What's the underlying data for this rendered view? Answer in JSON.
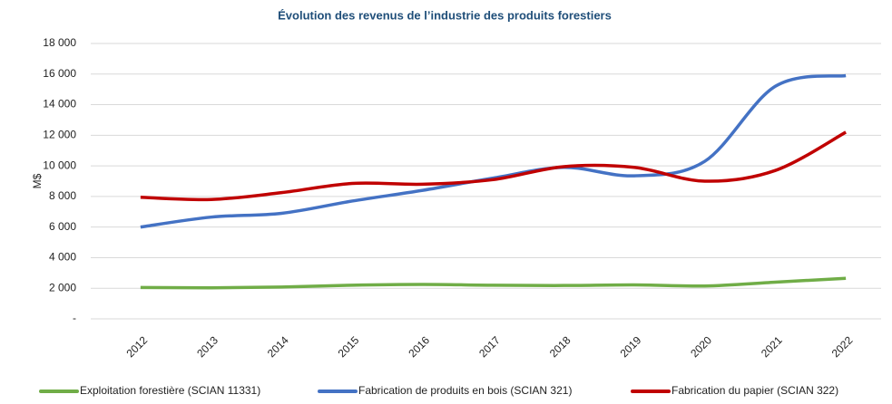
{
  "chart_data": {
    "type": "line",
    "title": "Évolution des revenus de l’industrie des produits forestiers",
    "y_label": "M$",
    "categories": [
      "2012",
      "2013",
      "2014",
      "2015",
      "2016",
      "2017",
      "2018",
      "2019",
      "2020",
      "2021",
      "2022"
    ],
    "series": [
      {
        "name": "Exploitation forestière (SCIAN 11331)",
        "color": "#70ad47",
        "values": [
          2050,
          2030,
          2080,
          2200,
          2250,
          2200,
          2180,
          2220,
          2150,
          2400,
          2650
        ]
      },
      {
        "name": "Fabrication de produits en bois (SCIAN 321)",
        "color": "#4472c4",
        "values": [
          6000,
          6650,
          6900,
          7700,
          8400,
          9200,
          9900,
          9350,
          10300,
          15200,
          15900
        ]
      },
      {
        "name": "Fabrication du papier (SCIAN 322)",
        "color": "#c00000",
        "values": [
          7950,
          7800,
          8250,
          8850,
          8800,
          9100,
          9950,
          9900,
          9000,
          9700,
          12200
        ]
      }
    ],
    "ylim": [
      0,
      18000
    ],
    "yticks": [
      {
        "value": 0,
        "label": "-"
      },
      {
        "value": 2000,
        "label": "2 000"
      },
      {
        "value": 4000,
        "label": "4 000"
      },
      {
        "value": 6000,
        "label": "6 000"
      },
      {
        "value": 8000,
        "label": "8 000"
      },
      {
        "value": 10000,
        "label": "10 000"
      },
      {
        "value": 12000,
        "label": "12 000"
      },
      {
        "value": 14000,
        "label": "14 000"
      },
      {
        "value": 16000,
        "label": "16 000"
      },
      {
        "value": 18000,
        "label": "18 000"
      }
    ],
    "grid": true,
    "legend": "bottom"
  }
}
